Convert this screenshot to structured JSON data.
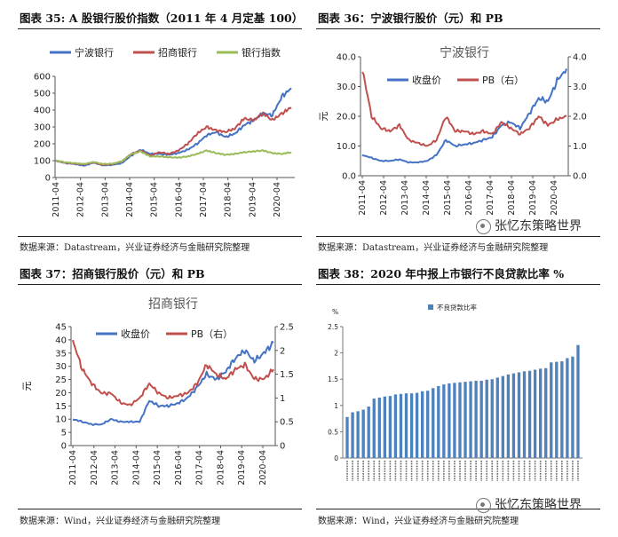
{
  "panels": [
    {
      "title": "图表 35: A 股银行股价指数（2011 年 4 月定基 100）",
      "source": "数据来源：Datastream，兴业证券经济与金融研究院整理",
      "chart": {
        "chart_title": "",
        "legend": [
          "宁波银行",
          "招商银行",
          "银行指数"
        ],
        "left_unit": "",
        "right_unit": "",
        "left_ticks": [
          "0",
          "100",
          "200",
          "300",
          "400",
          "500",
          "600"
        ],
        "right_ticks": [],
        "x_ticks": [
          "2011-04",
          "2012-04",
          "2013-04",
          "2014-04",
          "2015-04",
          "2016-04",
          "2017-04",
          "2018-04",
          "2019-04",
          "2020-04"
        ]
      }
    },
    {
      "title": "图表 36：宁波银行股价（元）和 PB",
      "source": "数据来源：Datastream，兴业证券经济与金融研究院整理",
      "chart": {
        "chart_title": "宁波银行",
        "legend": [
          "收盘价",
          "PB（右）"
        ],
        "left_unit": "元",
        "right_unit": "",
        "left_ticks": [
          "0.0",
          "10.0",
          "20.0",
          "30.0",
          "40.0"
        ],
        "right_ticks": [
          "0.0",
          "1.0",
          "2.0",
          "3.0",
          "4.0"
        ],
        "x_ticks": [
          "2011-04",
          "2012-04",
          "2013-04",
          "2014-04",
          "2015-04",
          "2016-04",
          "2017-04",
          "2018-04",
          "2019-04",
          "2020-04"
        ]
      }
    },
    {
      "title": "图表 37：招商银行股价（元）和 PB",
      "source": "数据来源：Wind，兴业证券经济与金融研究院整理",
      "chart": {
        "chart_title": "招商银行",
        "legend": [
          "收盘价",
          "PB（右）"
        ],
        "left_unit": "元",
        "right_unit": "",
        "left_ticks": [
          "0",
          "5",
          "10",
          "15",
          "20",
          "25",
          "30",
          "35",
          "40",
          "45"
        ],
        "right_ticks": [
          "0",
          "0.5",
          "1",
          "1.5",
          "2",
          "2.5"
        ],
        "x_ticks": [
          "2011-04",
          "2012-04",
          "2013-04",
          "2014-04",
          "2015-04",
          "2016-04",
          "2017-04",
          "2018-04",
          "2019-04",
          "2020-04"
        ]
      }
    },
    {
      "title": "图表 38：2020 年中报上市银行不良贷款比率 %",
      "source": "数据来源：Wind，兴业证券经济与金融研究院整理",
      "chart": {
        "chart_title": "",
        "legend": [
          "不良贷款比率"
        ],
        "left_unit": "%",
        "right_unit": "",
        "left_ticks": [
          "0",
          "0.5",
          "1",
          "1.5",
          "2",
          "2.5"
        ],
        "right_ticks": [],
        "x_ticks": []
      }
    }
  ],
  "watermark": "张忆东策略世界",
  "chart_data": [
    {
      "type": "line",
      "title": "A 股银行股价指数（2011 年 4 月定基 100）",
      "ylim": [
        0,
        600
      ],
      "x": [
        "2011-04",
        "2011-10",
        "2012-04",
        "2012-10",
        "2013-04",
        "2013-10",
        "2014-04",
        "2014-10",
        "2015-01",
        "2015-04",
        "2015-07",
        "2015-10",
        "2016-04",
        "2016-10",
        "2017-04",
        "2017-10",
        "2018-01",
        "2018-04",
        "2018-10",
        "2019-01",
        "2019-04",
        "2019-10",
        "2020-01",
        "2020-04",
        "2020-07",
        "2020-09"
      ],
      "series": [
        {
          "name": "宁波银行",
          "color": "#4472C4",
          "values": [
            100,
            85,
            80,
            70,
            88,
            72,
            75,
            85,
            130,
            165,
            140,
            140,
            135,
            145,
            165,
            200,
            250,
            270,
            240,
            260,
            310,
            340,
            380,
            370,
            480,
            530
          ]
        },
        {
          "name": "招商银行",
          "color": "#C0504D",
          "values": [
            100,
            88,
            82,
            78,
            90,
            75,
            80,
            95,
            140,
            160,
            130,
            150,
            140,
            160,
            200,
            260,
            300,
            280,
            270,
            290,
            350,
            340,
            380,
            340,
            380,
            415
          ]
        },
        {
          "name": "银行指数",
          "color": "#9BBB59",
          "values": [
            100,
            90,
            85,
            80,
            92,
            80,
            82,
            95,
            140,
            155,
            125,
            125,
            120,
            118,
            125,
            140,
            160,
            145,
            135,
            140,
            150,
            155,
            160,
            145,
            140,
            150
          ]
        }
      ]
    },
    {
      "type": "line",
      "title": "宁波银行",
      "ylabel": "元",
      "ylim": [
        0,
        40
      ],
      "y2lim": [
        0,
        4
      ],
      "x": [
        "2011-04",
        "2011-07",
        "2012-01",
        "2012-07",
        "2013-01",
        "2013-07",
        "2014-01",
        "2014-07",
        "2015-01",
        "2015-04",
        "2015-07",
        "2016-01",
        "2016-07",
        "2017-01",
        "2017-07",
        "2018-01",
        "2018-07",
        "2019-01",
        "2019-07",
        "2020-01",
        "2020-04",
        "2020-07",
        "2020-09"
      ],
      "series": [
        {
          "name": "收盘价",
          "color": "#4472C4",
          "axis": "left",
          "values": [
            7.0,
            6.0,
            5.0,
            5.0,
            5.5,
            4.5,
            4.5,
            5.0,
            7.0,
            12.0,
            10.0,
            10.5,
            11.0,
            12.0,
            13.0,
            17.0,
            18.0,
            16.0,
            21.0,
            26.0,
            25.0,
            32.0,
            36.0
          ]
        },
        {
          "name": "PB（右）",
          "color": "#C0504D",
          "axis": "right",
          "values": [
            3.6,
            2.0,
            1.6,
            1.5,
            1.7,
            1.2,
            1.1,
            1.0,
            1.2,
            2.0,
            1.5,
            1.5,
            1.4,
            1.5,
            1.4,
            1.8,
            1.6,
            1.4,
            1.6,
            2.0,
            1.7,
            1.9,
            2.0
          ]
        }
      ]
    },
    {
      "type": "line",
      "title": "招商银行",
      "ylabel": "元",
      "ylim": [
        0,
        45
      ],
      "y2lim": [
        0,
        2.5
      ],
      "x": [
        "2011-04",
        "2011-10",
        "2012-04",
        "2012-10",
        "2013-04",
        "2013-10",
        "2014-04",
        "2014-10",
        "2015-04",
        "2015-07",
        "2016-01",
        "2016-07",
        "2017-01",
        "2017-07",
        "2018-01",
        "2018-07",
        "2019-01",
        "2019-07",
        "2020-01",
        "2020-04",
        "2020-07",
        "2020-09"
      ],
      "series": [
        {
          "name": "收盘价",
          "color": "#4472C4",
          "axis": "left",
          "values": [
            10.0,
            9.0,
            8.0,
            8.0,
            10.0,
            9.0,
            9.0,
            9.0,
            17.0,
            15.0,
            15.0,
            16.0,
            18.0,
            22.0,
            27.0,
            25.0,
            28.0,
            33.0,
            36.0,
            32.0,
            35.0,
            39.0
          ]
        },
        {
          "name": "PB（右）",
          "color": "#C0504D",
          "axis": "right",
          "values": [
            2.2,
            1.6,
            1.3,
            1.1,
            1.1,
            0.9,
            0.85,
            1.0,
            1.3,
            1.1,
            1.0,
            1.05,
            1.1,
            1.3,
            1.7,
            1.5,
            1.4,
            1.6,
            1.7,
            1.4,
            1.4,
            1.6
          ]
        }
      ]
    },
    {
      "type": "bar",
      "title": "2020 年中报上市银行不良贷款比率 %",
      "ylabel": "%",
      "ylim": [
        0,
        2.5
      ],
      "legend": [
        "不良贷款比率"
      ],
      "series": [
        {
          "name": "不良贷款比率",
          "color": "#4F81BD",
          "values": [
            0.78,
            0.87,
            0.89,
            0.92,
            0.98,
            1.13,
            1.15,
            1.17,
            1.18,
            1.21,
            1.22,
            1.23,
            1.23,
            1.24,
            1.27,
            1.28,
            1.33,
            1.37,
            1.4,
            1.42,
            1.43,
            1.44,
            1.45,
            1.46,
            1.47,
            1.47,
            1.49,
            1.5,
            1.53,
            1.56,
            1.59,
            1.61,
            1.63,
            1.65,
            1.66,
            1.68,
            1.7,
            1.71,
            1.82,
            1.83,
            1.84,
            1.9,
            1.93,
            2.15
          ]
        }
      ]
    }
  ]
}
